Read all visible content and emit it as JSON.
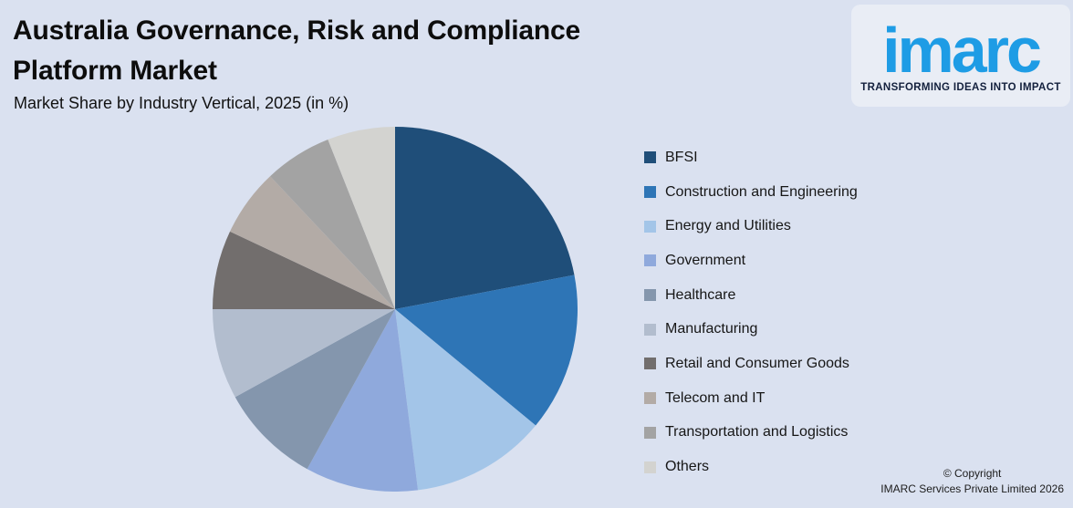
{
  "page": {
    "background_color": "#dae1f0"
  },
  "header": {
    "title_lines": [
      "Australia Governance, Risk and Compliance",
      "Platform Market"
    ],
    "subtitle": "Market Share by Industry Vertical, 2025 (in %)"
  },
  "logo": {
    "wordmark": "imarc",
    "tagline": "TRANSFORMING IDEAS INTO IMPACT",
    "brand_color": "#1e9ce5",
    "tagline_color": "#13203d"
  },
  "chart_data": {
    "type": "pie",
    "title": "Australia Governance, Risk and Compliance Platform Market",
    "subtitle": "Market Share by Industry Vertical, 2025 (in %)",
    "unit": "%",
    "start_angle_deg": 0,
    "direction": "clockwise",
    "legend_position": "right",
    "data_labels_shown": false,
    "categories": [
      "BFSI",
      "Construction and Engineering",
      "Energy and Utilities",
      "Government",
      "Healthcare",
      "Manufacturing",
      "Retail and Consumer Goods",
      "Telecom and IT",
      "Transportation and Logistics",
      "Others"
    ],
    "values": [
      22,
      14,
      12,
      10,
      9,
      8,
      7,
      6,
      6,
      6
    ],
    "colors": [
      "#1f4e79",
      "#2e75b6",
      "#a3c5e8",
      "#8fa9dc",
      "#8496ad",
      "#b2bdce",
      "#726e6d",
      "#b3aba6",
      "#a3a3a3",
      "#d3d3d0"
    ]
  },
  "footer": {
    "copyright_line1": "© Copyright",
    "copyright_line2": "IMARC Services Private Limited 2026"
  }
}
